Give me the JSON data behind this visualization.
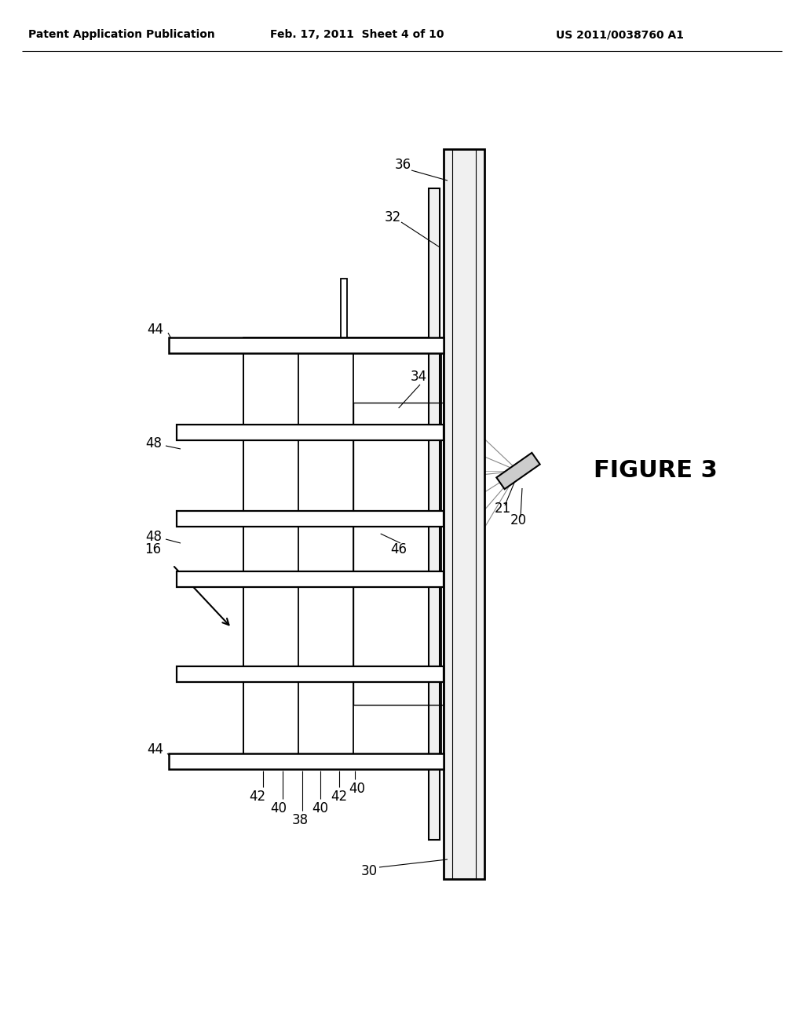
{
  "bg": "#ffffff",
  "header_left": "Patent Application Publication",
  "header_mid": "Feb. 17, 2011  Sheet 4 of 10",
  "header_right": "US 2011/0038760 A1",
  "figure_label": "FIGURE 3",
  "lc": "#000000",
  "fill_shelf": "#ffffff",
  "ray_color": "#aaaaaa",
  "mirror_fill": "#cccccc"
}
